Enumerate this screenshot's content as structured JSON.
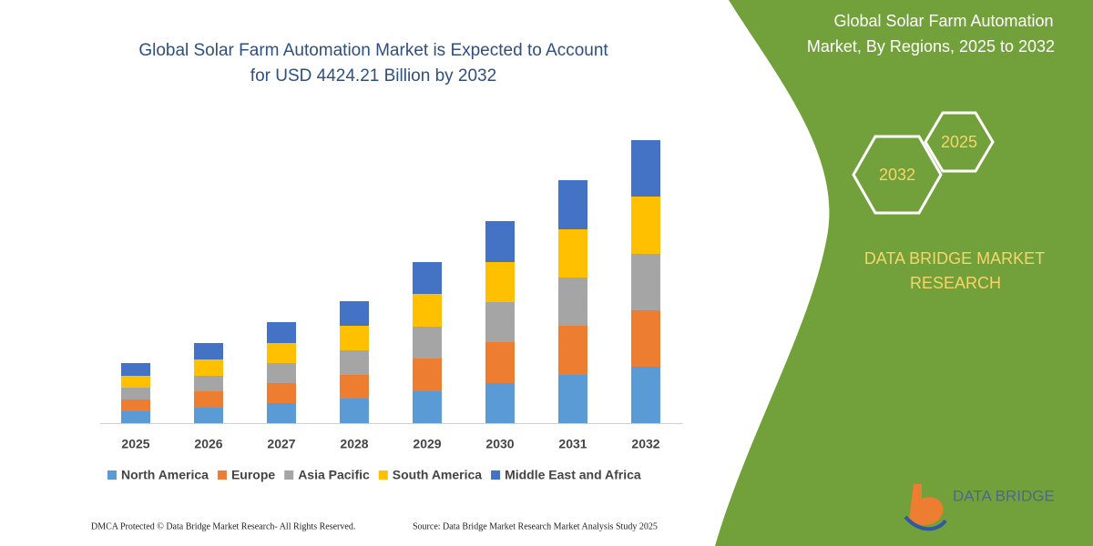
{
  "chart_data": {
    "type": "bar",
    "stacked": true,
    "title": [
      "Global Solar Farm Automation Market is Expected to Account",
      "for USD 4424.21 Billion by 2032"
    ],
    "categories": [
      "2025",
      "2026",
      "2027",
      "2028",
      "2029",
      "2030",
      "2031",
      "2032"
    ],
    "series": [
      {
        "name": "North America",
        "color": "#5b9bd5",
        "values": [
          13,
          17,
          22,
          27,
          35,
          44,
          53,
          62
        ]
      },
      {
        "name": "Europe",
        "color": "#ed7d31",
        "values": [
          13,
          18,
          22,
          26,
          36,
          45,
          54,
          62
        ]
      },
      {
        "name": "Asia Pacific",
        "color": "#a5a5a5",
        "values": [
          13,
          17,
          22,
          27,
          35,
          44,
          53,
          62
        ]
      },
      {
        "name": "South America",
        "color": "#ffc000",
        "values": [
          13,
          18,
          22,
          27,
          36,
          44,
          53,
          63
        ]
      },
      {
        "name": "Middle East and Africa",
        "color": "#4472c4",
        "values": [
          14,
          18,
          23,
          27,
          35,
          45,
          54,
          62
        ]
      }
    ]
  },
  "side_title": [
    "Global Solar Farm Automation",
    "Market, By Regions, 2025 to 2032"
  ],
  "hexagons": [
    "2032",
    "2025"
  ],
  "brand": [
    "DATA BRIDGE MARKET",
    "RESEARCH"
  ],
  "logo": "DATA BRIDGE",
  "footer": {
    "left": "DMCA Protected © Data Bridge Market Research-  All Rights Reserved.",
    "right": "Source: Data Bridge Market Research  Market Analysis Study 2025"
  }
}
